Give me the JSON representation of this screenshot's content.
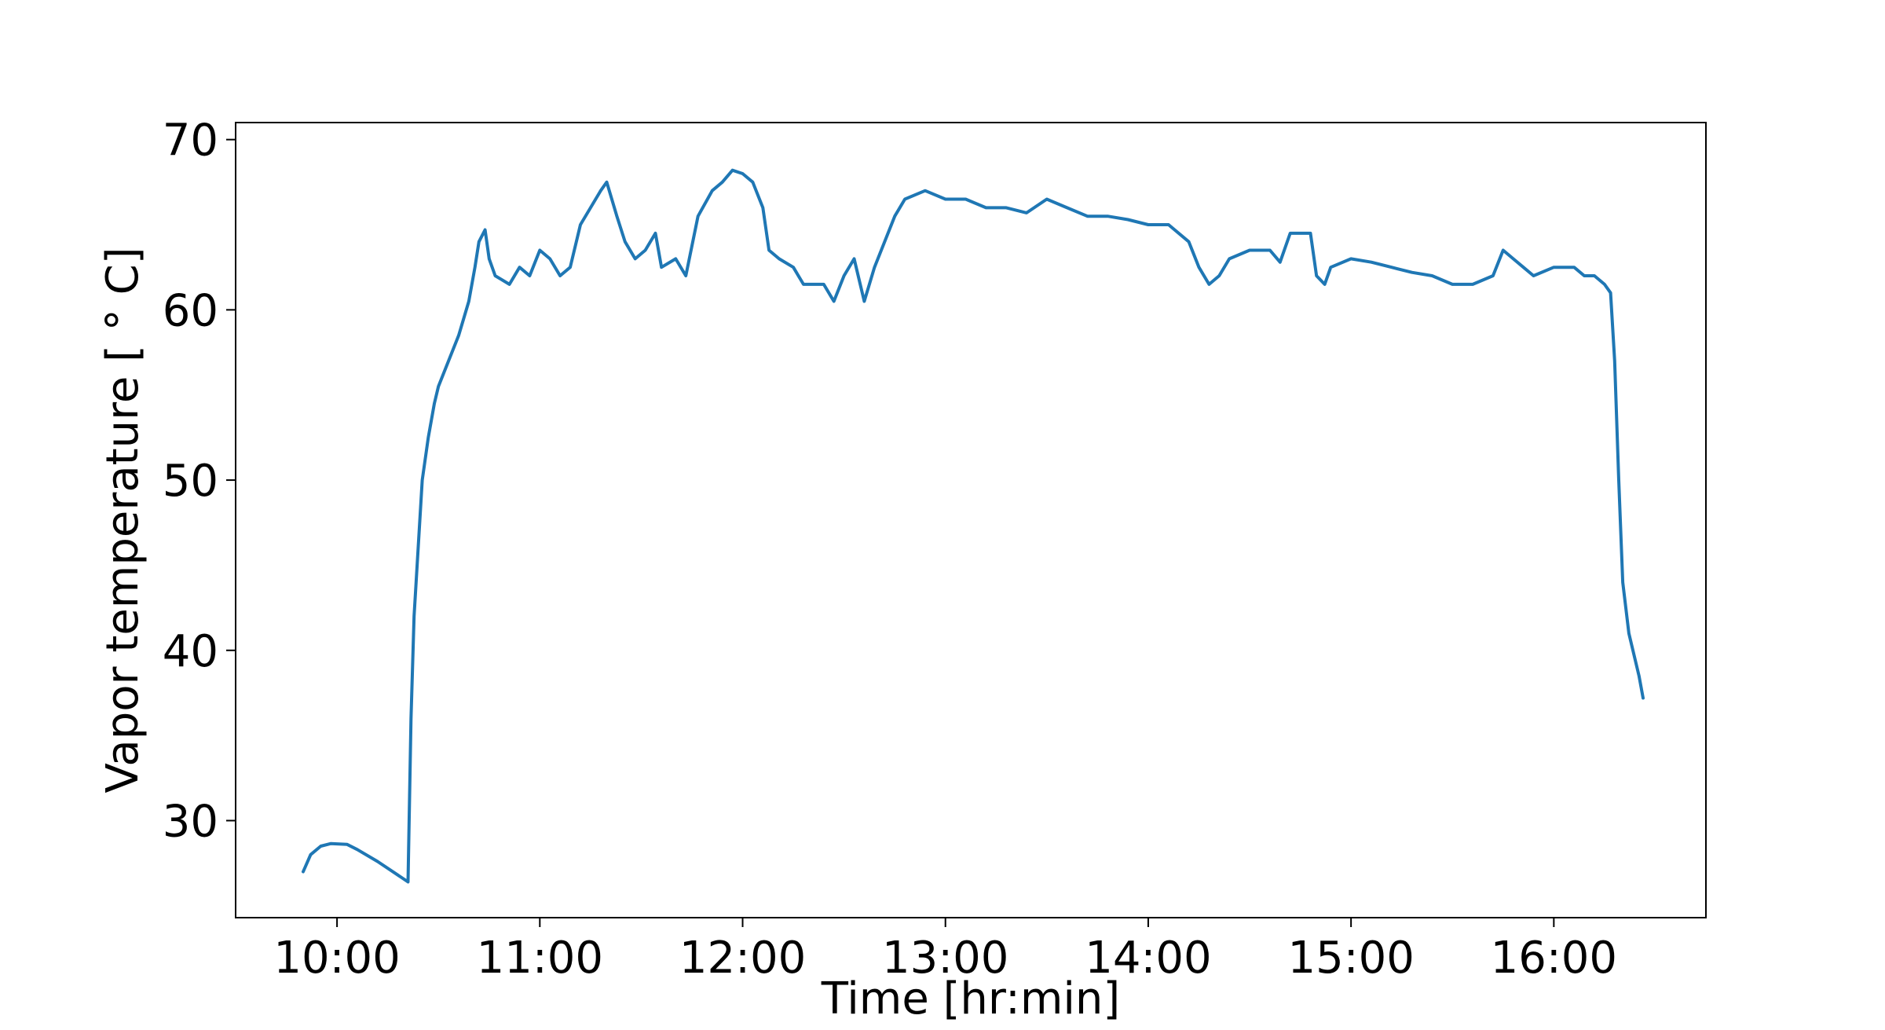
{
  "chart_data": {
    "type": "line",
    "title": "",
    "xlabel": "Time [hr:min]",
    "ylabel": "Vapor temperature [$^\\circ$C]",
    "ylabel_display": "Vapor temperature [ ° C]",
    "x_unit": "hours",
    "x_ticks": [
      {
        "value": 10,
        "label": "10:00"
      },
      {
        "value": 11,
        "label": "11:00"
      },
      {
        "value": 12,
        "label": "12:00"
      },
      {
        "value": 13,
        "label": "13:00"
      },
      {
        "value": 14,
        "label": "14:00"
      },
      {
        "value": 15,
        "label": "15:00"
      },
      {
        "value": 16,
        "label": "16:00"
      }
    ],
    "y_ticks": [
      30,
      40,
      50,
      60,
      70
    ],
    "xlim": [
      9.5,
      16.75
    ],
    "ylim": [
      24.3,
      71.0
    ],
    "grid": false,
    "legend": "none",
    "series": [
      {
        "color": "#1f77b4",
        "points": [
          [
            9.833,
            27.0
          ],
          [
            9.87,
            28.0
          ],
          [
            9.92,
            28.5
          ],
          [
            9.97,
            28.65
          ],
          [
            10.05,
            28.6
          ],
          [
            10.1,
            28.3
          ],
          [
            10.2,
            27.6
          ],
          [
            10.3,
            26.8
          ],
          [
            10.35,
            26.4
          ],
          [
            10.365,
            36.0
          ],
          [
            10.38,
            42.0
          ],
          [
            10.4,
            46.0
          ],
          [
            10.42,
            50.0
          ],
          [
            10.45,
            52.5
          ],
          [
            10.48,
            54.5
          ],
          [
            10.5,
            55.5
          ],
          [
            10.55,
            57.0
          ],
          [
            10.6,
            58.5
          ],
          [
            10.65,
            60.5
          ],
          [
            10.68,
            62.5
          ],
          [
            10.7,
            64.0
          ],
          [
            10.73,
            64.7
          ],
          [
            10.75,
            63.0
          ],
          [
            10.78,
            62.0
          ],
          [
            10.85,
            61.5
          ],
          [
            10.9,
            62.5
          ],
          [
            10.95,
            62.0
          ],
          [
            11.0,
            63.5
          ],
          [
            11.05,
            63.0
          ],
          [
            11.1,
            62.0
          ],
          [
            11.15,
            62.5
          ],
          [
            11.2,
            65.0
          ],
          [
            11.25,
            66.0
          ],
          [
            11.3,
            67.0
          ],
          [
            11.33,
            67.5
          ],
          [
            11.38,
            65.5
          ],
          [
            11.42,
            64.0
          ],
          [
            11.47,
            63.0
          ],
          [
            11.52,
            63.5
          ],
          [
            11.57,
            64.5
          ],
          [
            11.6,
            62.5
          ],
          [
            11.67,
            63.0
          ],
          [
            11.72,
            62.0
          ],
          [
            11.78,
            65.5
          ],
          [
            11.85,
            67.0
          ],
          [
            11.9,
            67.5
          ],
          [
            11.95,
            68.2
          ],
          [
            12.0,
            68.0
          ],
          [
            12.05,
            67.5
          ],
          [
            12.1,
            66.0
          ],
          [
            12.13,
            63.5
          ],
          [
            12.18,
            63.0
          ],
          [
            12.25,
            62.5
          ],
          [
            12.3,
            61.5
          ],
          [
            12.4,
            61.5
          ],
          [
            12.45,
            60.5
          ],
          [
            12.5,
            62.0
          ],
          [
            12.55,
            63.0
          ],
          [
            12.6,
            60.5
          ],
          [
            12.65,
            62.5
          ],
          [
            12.7,
            64.0
          ],
          [
            12.75,
            65.5
          ],
          [
            12.8,
            66.5
          ],
          [
            12.9,
            67.0
          ],
          [
            13.0,
            66.5
          ],
          [
            13.1,
            66.5
          ],
          [
            13.2,
            66.0
          ],
          [
            13.3,
            66.0
          ],
          [
            13.4,
            65.7
          ],
          [
            13.5,
            66.5
          ],
          [
            13.6,
            66.0
          ],
          [
            13.7,
            65.5
          ],
          [
            13.8,
            65.5
          ],
          [
            13.9,
            65.3
          ],
          [
            14.0,
            65.0
          ],
          [
            14.1,
            65.0
          ],
          [
            14.2,
            64.0
          ],
          [
            14.25,
            62.5
          ],
          [
            14.3,
            61.5
          ],
          [
            14.35,
            62.0
          ],
          [
            14.4,
            63.0
          ],
          [
            14.5,
            63.5
          ],
          [
            14.6,
            63.5
          ],
          [
            14.65,
            62.8
          ],
          [
            14.7,
            64.5
          ],
          [
            14.8,
            64.5
          ],
          [
            14.83,
            62.0
          ],
          [
            14.87,
            61.5
          ],
          [
            14.9,
            62.5
          ],
          [
            15.0,
            63.0
          ],
          [
            15.1,
            62.8
          ],
          [
            15.2,
            62.5
          ],
          [
            15.3,
            62.2
          ],
          [
            15.4,
            62.0
          ],
          [
            15.5,
            61.5
          ],
          [
            15.6,
            61.5
          ],
          [
            15.7,
            62.0
          ],
          [
            15.75,
            63.5
          ],
          [
            15.8,
            63.0
          ],
          [
            15.85,
            62.5
          ],
          [
            15.9,
            62.0
          ],
          [
            16.0,
            62.5
          ],
          [
            16.1,
            62.5
          ],
          [
            16.15,
            62.0
          ],
          [
            16.2,
            62.0
          ],
          [
            16.25,
            61.5
          ],
          [
            16.28,
            61.0
          ],
          [
            16.3,
            57.0
          ],
          [
            16.32,
            50.0
          ],
          [
            16.34,
            44.0
          ],
          [
            16.37,
            41.0
          ],
          [
            16.42,
            38.5
          ],
          [
            16.44,
            37.2
          ]
        ]
      }
    ]
  }
}
